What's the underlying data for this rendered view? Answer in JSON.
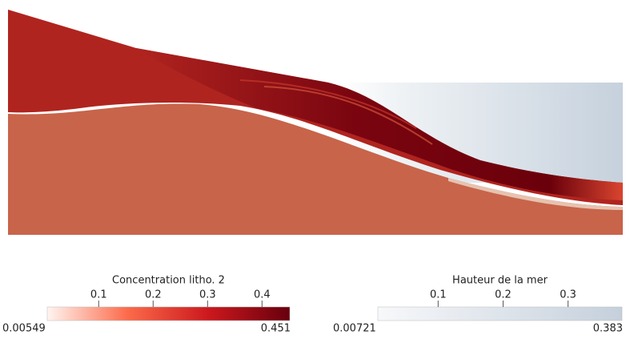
{
  "legends": [
    {
      "title": "Concentration litho. 2",
      "range": [
        0.00549,
        0.451
      ],
      "ticks": [
        0.1,
        0.2,
        0.3,
        0.4
      ],
      "colors": [
        "#fff5f0",
        "#fb6a4a",
        "#cb181d",
        "#67000d"
      ]
    },
    {
      "title": "Hauteur de la mer",
      "range": [
        0.00721,
        0.383
      ],
      "ticks": [
        0.1,
        0.2,
        0.3
      ],
      "colors": [
        "#f7f8fa",
        "#c5d0dc"
      ]
    }
  ]
}
